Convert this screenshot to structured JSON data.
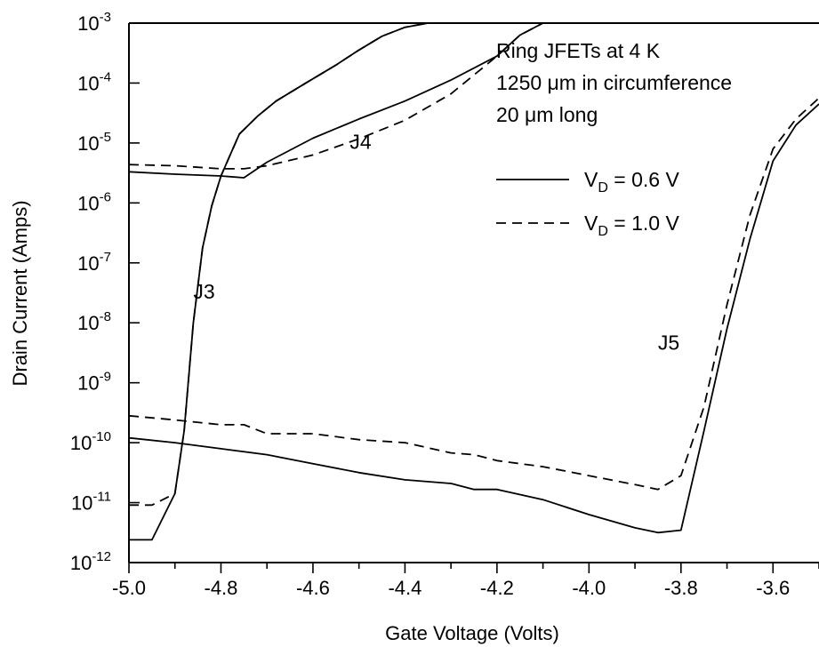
{
  "chart_data": {
    "type": "line",
    "title": "",
    "xlabel": "Gate Voltage (Volts)",
    "ylabel": "Drain Current (Amps)",
    "xlim": [
      -5.0,
      -3.5
    ],
    "ylim_exp": [
      -12,
      -3
    ],
    "yscale": "log",
    "x_ticks": [
      "-5.0",
      "-4.8",
      "-4.6",
      "-4.4",
      "-4.2",
      "-4.0",
      "-3.8",
      "-3.6"
    ],
    "x_tick_values": [
      -5.0,
      -4.8,
      -4.6,
      -4.4,
      -4.2,
      -4.0,
      -3.8,
      -3.6
    ],
    "y_tick_base": "10",
    "y_tick_exponents": [
      "-12",
      "-11",
      "-10",
      "-9",
      "-8",
      "-7",
      "-6",
      "-5",
      "-4",
      "-3"
    ],
    "info_lines": [
      "Ring JFETs at 4 K",
      "1250 μm in circumference",
      "20 μm long"
    ],
    "legend": [
      {
        "style": "solid",
        "text_main": "V",
        "text_sub": "D",
        "text_rest": " = 0.6 V"
      },
      {
        "style": "dashed",
        "text_main": "V",
        "text_sub": "D",
        "text_rest": " = 1.0 V"
      }
    ],
    "annotations": [
      {
        "id": "j3",
        "text": "J3",
        "x": -4.86,
        "y_exp": -7.6
      },
      {
        "id": "j4",
        "text": "J4",
        "x": -4.52,
        "y_exp": -5.1
      },
      {
        "id": "j5",
        "text": "J5",
        "x": -3.85,
        "y_exp": -8.45
      }
    ],
    "series": [
      {
        "id": "j3-vd06",
        "style": "solid",
        "points": [
          [
            -5.0,
            -11.62
          ],
          [
            -4.95,
            -11.62
          ],
          [
            -4.9,
            -10.85
          ],
          [
            -4.88,
            -9.8
          ],
          [
            -4.86,
            -8.0
          ],
          [
            -4.84,
            -6.75
          ],
          [
            -4.82,
            -6.05
          ],
          [
            -4.8,
            -5.55
          ],
          [
            -4.78,
            -5.2
          ],
          [
            -4.76,
            -4.85
          ],
          [
            -4.72,
            -4.55
          ],
          [
            -4.68,
            -4.3
          ],
          [
            -4.62,
            -4.02
          ],
          [
            -4.55,
            -3.7
          ],
          [
            -4.5,
            -3.45
          ],
          [
            -4.45,
            -3.22
          ],
          [
            -4.4,
            -3.07
          ],
          [
            -4.35,
            -3.0
          ]
        ]
      },
      {
        "id": "j3-vd10",
        "style": "dashed",
        "points": [
          [
            -5.0,
            -11.04
          ],
          [
            -4.95,
            -11.04
          ],
          [
            -4.9,
            -10.85
          ],
          [
            -4.88,
            -9.8
          ],
          [
            -4.86,
            -8.0
          ],
          [
            -4.84,
            -6.75
          ],
          [
            -4.82,
            -6.05
          ],
          [
            -4.8,
            -5.55
          ],
          [
            -4.78,
            -5.2
          ],
          [
            -4.76,
            -4.85
          ],
          [
            -4.72,
            -4.55
          ],
          [
            -4.68,
            -4.3
          ],
          [
            -4.62,
            -4.02
          ],
          [
            -4.55,
            -3.7
          ],
          [
            -4.5,
            -3.45
          ],
          [
            -4.45,
            -3.22
          ],
          [
            -4.4,
            -3.07
          ],
          [
            -4.35,
            -3.0
          ]
        ]
      },
      {
        "id": "j4-vd06",
        "style": "solid",
        "points": [
          [
            -5.0,
            -5.48
          ],
          [
            -4.9,
            -5.52
          ],
          [
            -4.8,
            -5.55
          ],
          [
            -4.75,
            -5.58
          ],
          [
            -4.7,
            -5.32
          ],
          [
            -4.6,
            -4.92
          ],
          [
            -4.5,
            -4.6
          ],
          [
            -4.4,
            -4.3
          ],
          [
            -4.3,
            -3.95
          ],
          [
            -4.2,
            -3.55
          ],
          [
            -4.15,
            -3.2
          ],
          [
            -4.1,
            -3.0
          ]
        ]
      },
      {
        "id": "j4-vd10",
        "style": "dashed",
        "points": [
          [
            -5.0,
            -5.36
          ],
          [
            -4.9,
            -5.38
          ],
          [
            -4.8,
            -5.43
          ],
          [
            -4.75,
            -5.43
          ],
          [
            -4.7,
            -5.38
          ],
          [
            -4.6,
            -5.2
          ],
          [
            -4.5,
            -4.93
          ],
          [
            -4.4,
            -4.62
          ],
          [
            -4.3,
            -4.18
          ],
          [
            -4.2,
            -3.55
          ],
          [
            -4.15,
            -3.2
          ],
          [
            -4.1,
            -3.0
          ]
        ]
      },
      {
        "id": "j5-vd06",
        "style": "solid",
        "points": [
          [
            -5.0,
            -9.92
          ],
          [
            -4.9,
            -10.0
          ],
          [
            -4.8,
            -10.1
          ],
          [
            -4.7,
            -10.2
          ],
          [
            -4.6,
            -10.35
          ],
          [
            -4.5,
            -10.5
          ],
          [
            -4.4,
            -10.62
          ],
          [
            -4.3,
            -10.68
          ],
          [
            -4.25,
            -10.78
          ],
          [
            -4.2,
            -10.78
          ],
          [
            -4.1,
            -10.95
          ],
          [
            -4.0,
            -11.2
          ],
          [
            -3.9,
            -11.42
          ],
          [
            -3.85,
            -11.5
          ],
          [
            -3.8,
            -11.46
          ],
          [
            -3.75,
            -9.8
          ],
          [
            -3.7,
            -8.1
          ],
          [
            -3.65,
            -6.6
          ],
          [
            -3.6,
            -5.3
          ],
          [
            -3.55,
            -4.7
          ],
          [
            -3.5,
            -4.35
          ]
        ]
      },
      {
        "id": "j5-vd10",
        "style": "dashed",
        "points": [
          [
            -5.0,
            -9.55
          ],
          [
            -4.9,
            -9.62
          ],
          [
            -4.8,
            -9.7
          ],
          [
            -4.75,
            -9.7
          ],
          [
            -4.7,
            -9.85
          ],
          [
            -4.6,
            -9.85
          ],
          [
            -4.5,
            -9.95
          ],
          [
            -4.4,
            -10.0
          ],
          [
            -4.3,
            -10.17
          ],
          [
            -4.25,
            -10.2
          ],
          [
            -4.2,
            -10.3
          ],
          [
            -4.1,
            -10.4
          ],
          [
            -4.0,
            -10.55
          ],
          [
            -3.9,
            -10.7
          ],
          [
            -3.85,
            -10.78
          ],
          [
            -3.8,
            -10.55
          ],
          [
            -3.75,
            -9.4
          ],
          [
            -3.7,
            -7.7
          ],
          [
            -3.65,
            -6.2
          ],
          [
            -3.6,
            -5.1
          ],
          [
            -3.55,
            -4.6
          ],
          [
            -3.5,
            -4.25
          ]
        ]
      }
    ]
  }
}
